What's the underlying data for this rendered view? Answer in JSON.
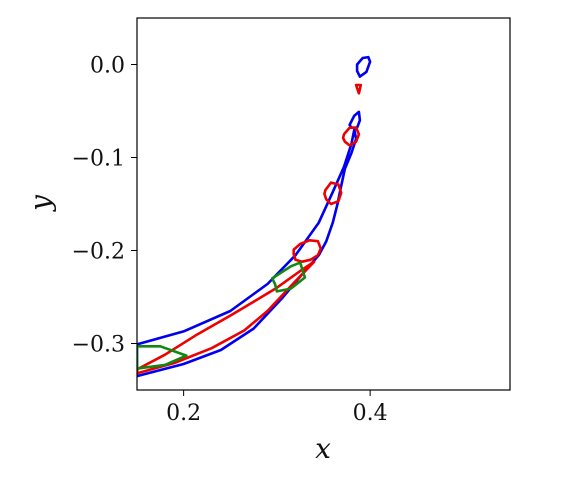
{
  "chart_data": {
    "type": "line",
    "title": "",
    "xlabel": "x",
    "ylabel": "y",
    "xlim": [
      0.15,
      0.55
    ],
    "ylim": [
      -0.35,
      0.05
    ],
    "xticks": [
      {
        "value": 0.2,
        "label": "0.2"
      },
      {
        "value": 0.4,
        "label": "0.4"
      }
    ],
    "yticks": [
      {
        "value": 0.0,
        "label": "0.0"
      },
      {
        "value": -0.1,
        "label": "−0.1"
      },
      {
        "value": -0.2,
        "label": "−0.2"
      },
      {
        "value": -0.3,
        "label": "−0.3"
      }
    ],
    "grid": false,
    "legend": "none",
    "colors": {
      "blue": "#0000ee",
      "red": "#ee0000",
      "green": "#118811"
    },
    "series": [
      {
        "color": "blue",
        "closed": true,
        "x": [
          0.15,
          0.2,
          0.25,
          0.29,
          0.32,
          0.345,
          0.36,
          0.372,
          0.38,
          0.383,
          0.385,
          0.38,
          0.373,
          0.368,
          0.365,
          0.36,
          0.353,
          0.345,
          0.33,
          0.305,
          0.275,
          0.24,
          0.2,
          0.15
        ],
        "y": [
          -0.301,
          -0.287,
          -0.265,
          -0.236,
          -0.205,
          -0.17,
          -0.137,
          -0.11,
          -0.085,
          -0.07,
          -0.08,
          -0.095,
          -0.112,
          -0.135,
          -0.15,
          -0.17,
          -0.19,
          -0.205,
          -0.222,
          -0.252,
          -0.284,
          -0.307,
          -0.322,
          -0.335
        ]
      },
      {
        "color": "blue",
        "closed": true,
        "x": [
          0.379,
          0.383,
          0.388,
          0.389,
          0.386,
          0.38,
          0.378
        ],
        "y": [
          -0.063,
          -0.055,
          -0.051,
          -0.06,
          -0.068,
          -0.068,
          -0.065
        ]
      },
      {
        "color": "blue",
        "closed": true,
        "x": [
          0.386,
          0.392,
          0.398,
          0.4,
          0.396,
          0.389,
          0.386
        ],
        "y": [
          0.0,
          0.007,
          0.008,
          0.003,
          -0.008,
          -0.013,
          -0.007
        ]
      },
      {
        "color": "red",
        "closed": true,
        "x": [
          0.15,
          0.19,
          0.23,
          0.265,
          0.29,
          0.32,
          0.34,
          0.325,
          0.3,
          0.275,
          0.25,
          0.215,
          0.18,
          0.15
        ],
        "y": [
          -0.332,
          -0.321,
          -0.305,
          -0.286,
          -0.265,
          -0.233,
          -0.212,
          -0.222,
          -0.24,
          -0.255,
          -0.27,
          -0.29,
          -0.312,
          -0.328
        ]
      },
      {
        "color": "red",
        "closed": true,
        "x": [
          0.318,
          0.325,
          0.335,
          0.344,
          0.347,
          0.344,
          0.336,
          0.327,
          0.32,
          0.318
        ],
        "y": [
          -0.199,
          -0.193,
          -0.189,
          -0.19,
          -0.198,
          -0.205,
          -0.21,
          -0.212,
          -0.21,
          -0.204
        ]
      },
      {
        "color": "red",
        "closed": true,
        "x": [
          0.352,
          0.358,
          0.366,
          0.369,
          0.366,
          0.358,
          0.353,
          0.351
        ],
        "y": [
          -0.135,
          -0.127,
          -0.129,
          -0.138,
          -0.147,
          -0.15,
          -0.145,
          -0.139
        ]
      },
      {
        "color": "red",
        "closed": true,
        "x": [
          0.372,
          0.378,
          0.385,
          0.388,
          0.385,
          0.378,
          0.373,
          0.371
        ],
        "y": [
          -0.075,
          -0.068,
          -0.068,
          -0.075,
          -0.083,
          -0.087,
          -0.083,
          -0.079
        ]
      },
      {
        "color": "red",
        "closed": true,
        "x": [
          0.385,
          0.39,
          0.388
        ],
        "y": [
          -0.022,
          -0.022,
          -0.031
        ]
      },
      {
        "color": "green",
        "closed": true,
        "x": [
          0.15,
          0.175,
          0.203,
          0.18,
          0.15
        ],
        "y": [
          -0.303,
          -0.303,
          -0.313,
          -0.323,
          -0.327
        ]
      },
      {
        "color": "green",
        "closed": true,
        "x": [
          0.295,
          0.315,
          0.325,
          0.33,
          0.315,
          0.3,
          0.298
        ],
        "y": [
          -0.23,
          -0.217,
          -0.213,
          -0.229,
          -0.241,
          -0.244,
          -0.236
        ]
      }
    ]
  }
}
